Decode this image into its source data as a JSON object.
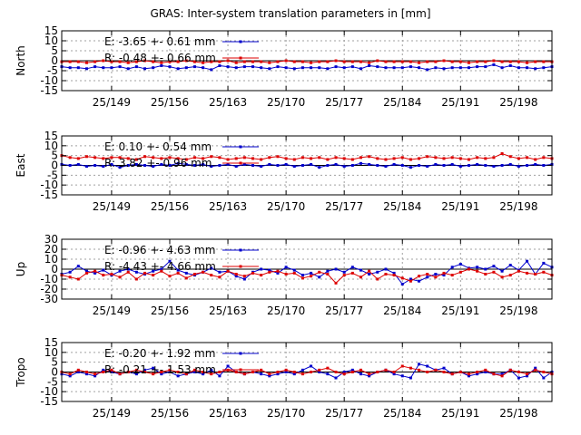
{
  "title": "GRAS: Inter-system translation parameters in [mm]",
  "colors": {
    "E": "#0000cc",
    "R": "#dd0000",
    "axis": "#000000",
    "grid": "#a0a0a0"
  },
  "chart_data": [
    {
      "type": "line",
      "ylabel": "North",
      "ylim": [
        -15,
        15
      ],
      "yticks": [
        15,
        10,
        5,
        0,
        -5,
        -10,
        -15
      ],
      "xlim": [
        143,
        202
      ],
      "xticks": [
        149,
        156,
        163,
        170,
        177,
        184,
        191,
        198
      ],
      "xticklabels": [
        "25/149",
        "25/156",
        "25/163",
        "25/170",
        "25/177",
        "25/184",
        "25/191",
        "25/198"
      ],
      "legend": [
        "E:  -3.65 +- 0.61 mm",
        "R:  -0.48 +- 0.66 mm"
      ],
      "series": [
        {
          "name": "E",
          "x": [
            143,
            144,
            145,
            146,
            147,
            148,
            149,
            150,
            151,
            152,
            153,
            154,
            155,
            156,
            157,
            158,
            159,
            160,
            161,
            162,
            163,
            164,
            165,
            166,
            167,
            168,
            169,
            170,
            171,
            172,
            173,
            174,
            175,
            176,
            177,
            178,
            179,
            180,
            181,
            182,
            183,
            184,
            185,
            186,
            187,
            188,
            189,
            190,
            191,
            192,
            193,
            194,
            195,
            196,
            197,
            198,
            199,
            200,
            201,
            202
          ],
          "values": [
            -3,
            -3.5,
            -3.5,
            -4,
            -3,
            -3.5,
            -3.5,
            -3,
            -4,
            -3,
            -4,
            -3.5,
            -2.5,
            -3,
            -4,
            -3.5,
            -3,
            -3.5,
            -4.5,
            -2.5,
            -3,
            -3.5,
            -3,
            -3,
            -3.5,
            -4,
            -3,
            -3.5,
            -4,
            -3.5,
            -3.5,
            -3.5,
            -4,
            -3,
            -3.5,
            -3,
            -4,
            -2.5,
            -3,
            -3.5,
            -3.5,
            -3.5,
            -3,
            -3.5,
            -4.5,
            -3.5,
            -4,
            -3.5,
            -3.5,
            -3.5,
            -3,
            -3,
            -2,
            -3.5,
            -2.5,
            -3.5,
            -3.5,
            -4,
            -3.5,
            -3
          ]
        },
        {
          "name": "R",
          "x": [
            143,
            144,
            145,
            146,
            147,
            148,
            149,
            150,
            151,
            152,
            153,
            154,
            155,
            156,
            157,
            158,
            159,
            160,
            161,
            162,
            163,
            164,
            165,
            166,
            167,
            168,
            169,
            170,
            171,
            172,
            173,
            174,
            175,
            176,
            177,
            178,
            179,
            180,
            181,
            182,
            183,
            184,
            185,
            186,
            187,
            188,
            189,
            190,
            191,
            192,
            193,
            194,
            195,
            196,
            197,
            198,
            199,
            200,
            201,
            202
          ],
          "values": [
            -0.5,
            -0.5,
            -0.5,
            -1,
            -0.5,
            0,
            -0.5,
            -0.5,
            -1,
            -0.5,
            0,
            -0.5,
            -1,
            -0.5,
            -0.5,
            0,
            -0.5,
            -1,
            -0.5,
            -0.5,
            0,
            -1,
            -0.5,
            -0.5,
            -0.5,
            -1,
            -0.5,
            0,
            -0.5,
            -0.5,
            -1,
            -0.5,
            -0.5,
            0,
            -0.5,
            -0.5,
            -0.5,
            -1,
            0,
            -0.5,
            -0.5,
            -0.5,
            -0.5,
            -1,
            -0.5,
            -0.5,
            0,
            -0.5,
            -0.5,
            -1,
            -0.5,
            -0.5,
            0,
            -0.5,
            -0.5,
            -0.5,
            -1,
            -0.5,
            -0.5,
            -0.5
          ]
        }
      ]
    },
    {
      "type": "line",
      "ylabel": "East",
      "ylim": [
        -15,
        15
      ],
      "yticks": [
        15,
        10,
        5,
        0,
        -5,
        -10,
        -15
      ],
      "xlim": [
        143,
        202
      ],
      "xticks": [
        149,
        156,
        163,
        170,
        177,
        184,
        191,
        198
      ],
      "xticklabels": [
        "25/149",
        "25/156",
        "25/163",
        "25/170",
        "25/177",
        "25/184",
        "25/191",
        "25/198"
      ],
      "legend": [
        "E:   0.10 +- 0.54 mm",
        "R:   3.82 +- 0.96 mm"
      ],
      "series": [
        {
          "name": "E",
          "x": [
            143,
            144,
            145,
            146,
            147,
            148,
            149,
            150,
            151,
            152,
            153,
            154,
            155,
            156,
            157,
            158,
            159,
            160,
            161,
            162,
            163,
            164,
            165,
            166,
            167,
            168,
            169,
            170,
            171,
            172,
            173,
            174,
            175,
            176,
            177,
            178,
            179,
            180,
            181,
            182,
            183,
            184,
            185,
            186,
            187,
            188,
            189,
            190,
            191,
            192,
            193,
            194,
            195,
            196,
            197,
            198,
            199,
            200,
            201,
            202
          ],
          "values": [
            0.5,
            0,
            0.5,
            -0.5,
            0,
            -0.5,
            0.5,
            -1,
            0,
            0.5,
            0,
            -0.5,
            0.5,
            0,
            1,
            0.5,
            0,
            0.5,
            -0.5,
            0,
            0.5,
            -0.5,
            0.5,
            0,
            -0.5,
            0.5,
            0,
            0.5,
            -0.5,
            0,
            0.5,
            -1,
            0,
            0.5,
            -0.5,
            0,
            1,
            0.5,
            0,
            -0.5,
            0.5,
            0,
            -1,
            0,
            -0.5,
            0.5,
            0,
            0.5,
            -0.5,
            0,
            0.5,
            0,
            -0.5,
            0,
            0.5,
            -0.5,
            0,
            0.5,
            0,
            0.5
          ]
        },
        {
          "name": "R",
          "x": [
            143,
            144,
            145,
            146,
            147,
            148,
            149,
            150,
            151,
            152,
            153,
            154,
            155,
            156,
            157,
            158,
            159,
            160,
            161,
            162,
            163,
            164,
            165,
            166,
            167,
            168,
            169,
            170,
            171,
            172,
            173,
            174,
            175,
            176,
            177,
            178,
            179,
            180,
            181,
            182,
            183,
            184,
            185,
            186,
            187,
            188,
            189,
            190,
            191,
            192,
            193,
            194,
            195,
            196,
            197,
            198,
            199,
            200,
            201,
            202
          ],
          "values": [
            5,
            4,
            3.5,
            4.5,
            4,
            3.5,
            4,
            4,
            3.5,
            3,
            4.5,
            4,
            3.5,
            4,
            3.5,
            3,
            4,
            3.5,
            4.5,
            4,
            3,
            3.5,
            4,
            3.5,
            3,
            4,
            4.5,
            3.5,
            3,
            4,
            3.5,
            4,
            3,
            4,
            3.5,
            3,
            4,
            4.5,
            3.5,
            3,
            3.5,
            4,
            3,
            3.5,
            4.5,
            4,
            3.5,
            4,
            3.5,
            3,
            4,
            3.5,
            4,
            6,
            4.5,
            3.5,
            4,
            3,
            4,
            3.5
          ]
        }
      ]
    },
    {
      "type": "line",
      "ylabel": "Up",
      "ylim": [
        -30,
        30
      ],
      "yticks": [
        30,
        20,
        10,
        0,
        -10,
        -20,
        -30
      ],
      "xlim": [
        143,
        202
      ],
      "xticks": [
        149,
        156,
        163,
        170,
        177,
        184,
        191,
        198
      ],
      "xticklabels": [
        "25/149",
        "25/156",
        "25/163",
        "25/170",
        "25/177",
        "25/184",
        "25/191",
        "25/198"
      ],
      "legend": [
        "E:  -0.96 +- 4.63 mm",
        "R:  -4.43 +- 4.66 mm"
      ],
      "series": [
        {
          "name": "E",
          "x": [
            143,
            144,
            145,
            146,
            147,
            148,
            149,
            150,
            151,
            152,
            153,
            154,
            155,
            156,
            157,
            158,
            159,
            160,
            161,
            162,
            163,
            164,
            165,
            166,
            167,
            168,
            169,
            170,
            171,
            172,
            173,
            174,
            175,
            176,
            177,
            178,
            179,
            180,
            181,
            182,
            183,
            184,
            185,
            186,
            187,
            188,
            189,
            190,
            191,
            192,
            193,
            194,
            195,
            196,
            197,
            198,
            199,
            200,
            201,
            202
          ],
          "values": [
            -5,
            -3,
            3,
            -2,
            -4,
            -1,
            -6,
            -2,
            0,
            -3,
            -5,
            -2,
            0,
            8,
            -1,
            -4,
            -6,
            -3,
            1,
            -3,
            -2,
            -7,
            -10,
            -3,
            0,
            -1,
            -4,
            2,
            -1,
            -6,
            -4,
            -8,
            -2,
            0,
            -3,
            2,
            -1,
            -5,
            -3,
            0,
            -4,
            -15,
            -10,
            -12,
            -8,
            -5,
            -6,
            2,
            5,
            1,
            2,
            0,
            3,
            -2,
            4,
            -1,
            8,
            -5,
            6,
            2
          ]
        },
        {
          "name": "R",
          "x": [
            143,
            144,
            145,
            146,
            147,
            148,
            149,
            150,
            151,
            152,
            153,
            154,
            155,
            156,
            157,
            158,
            159,
            160,
            161,
            162,
            163,
            164,
            165,
            166,
            167,
            168,
            169,
            170,
            171,
            172,
            173,
            174,
            175,
            176,
            177,
            178,
            179,
            180,
            181,
            182,
            183,
            184,
            185,
            186,
            187,
            188,
            189,
            190,
            191,
            192,
            193,
            194,
            195,
            196,
            197,
            198,
            199,
            200,
            201,
            202
          ],
          "values": [
            -6,
            -8,
            -10,
            -4,
            -2,
            -6,
            -5,
            -8,
            -3,
            -10,
            -4,
            -6,
            -2,
            -7,
            -4,
            -9,
            -5,
            -3,
            -6,
            -8,
            -2,
            -5,
            -7,
            -4,
            -6,
            -3,
            -2,
            -5,
            -4,
            -9,
            -7,
            -3,
            -5,
            -14,
            -6,
            -4,
            -8,
            -2,
            -10,
            -5,
            -6,
            -9,
            -12,
            -7,
            -5,
            -8,
            -4,
            -6,
            -3,
            0,
            -2,
            -5,
            -3,
            -8,
            -6,
            -2,
            -4,
            -5,
            -3,
            -6
          ]
        }
      ]
    },
    {
      "type": "line",
      "ylabel": "Tropo",
      "ylim": [
        -15,
        15
      ],
      "yticks": [
        15,
        10,
        5,
        0,
        -5,
        -10,
        -15
      ],
      "xlim": [
        143,
        202
      ],
      "xticks": [
        149,
        156,
        163,
        170,
        177,
        184,
        191,
        198
      ],
      "xticklabels": [
        "25/149",
        "25/156",
        "25/163",
        "25/170",
        "25/177",
        "25/184",
        "25/191",
        "25/198"
      ],
      "legend": [
        "E:  -0.20 +- 1.92 mm",
        "R:  -0.21 +- 1.53 mm"
      ],
      "series": [
        {
          "name": "E",
          "x": [
            143,
            144,
            145,
            146,
            147,
            148,
            149,
            150,
            151,
            152,
            153,
            154,
            155,
            156,
            157,
            158,
            159,
            160,
            161,
            162,
            163,
            164,
            165,
            166,
            167,
            168,
            169,
            170,
            171,
            172,
            173,
            174,
            175,
            176,
            177,
            178,
            179,
            180,
            181,
            182,
            183,
            184,
            185,
            186,
            187,
            188,
            189,
            190,
            191,
            192,
            193,
            194,
            195,
            196,
            197,
            198,
            199,
            200,
            201,
            202
          ],
          "values": [
            -1,
            -2,
            0,
            -1,
            -2,
            1,
            0,
            -1,
            0,
            -1,
            1,
            2,
            -1,
            0,
            -2,
            -1,
            0,
            -1,
            1,
            -2,
            3,
            0,
            -1,
            0,
            -1,
            -2,
            -1,
            0,
            -1,
            1,
            3,
            0,
            -1,
            -3,
            0,
            1,
            -1,
            -2,
            0,
            1,
            -1,
            -2,
            -3,
            4,
            3,
            1,
            2,
            -1,
            0,
            -2,
            -1,
            0,
            -1,
            -1,
            1,
            -3,
            -2,
            2,
            -3,
            0
          ]
        },
        {
          "name": "R",
          "x": [
            143,
            144,
            145,
            146,
            147,
            148,
            149,
            150,
            151,
            152,
            153,
            154,
            155,
            156,
            157,
            158,
            159,
            160,
            161,
            162,
            163,
            164,
            165,
            166,
            167,
            168,
            169,
            170,
            171,
            172,
            173,
            174,
            175,
            176,
            177,
            178,
            179,
            180,
            181,
            182,
            183,
            184,
            185,
            186,
            187,
            188,
            189,
            190,
            191,
            192,
            193,
            194,
            195,
            196,
            197,
            198,
            199,
            200,
            201,
            202
          ],
          "values": [
            0,
            -1,
            1,
            0,
            -1,
            0,
            1,
            -1,
            0,
            1,
            0,
            -1,
            0,
            1,
            0,
            -1,
            1,
            0,
            -1,
            0,
            1,
            0,
            -1,
            0,
            1,
            -1,
            0,
            1,
            0,
            -1,
            0,
            1,
            2,
            0,
            -1,
            0,
            1,
            -1,
            0,
            1,
            0,
            3,
            2,
            1,
            0,
            1,
            0,
            -1,
            0,
            -1,
            0,
            1,
            -1,
            -2,
            1,
            0,
            -1,
            1,
            0,
            -1
          ]
        }
      ]
    }
  ]
}
